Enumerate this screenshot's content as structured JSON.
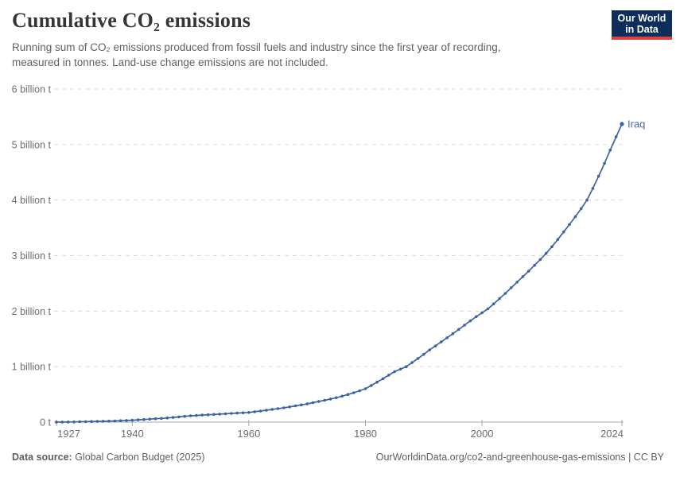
{
  "header": {
    "title": "Cumulative CO₂ emissions",
    "subtitle_line1": "Running sum of CO₂ emissions produced from fossil fuels and industry since the first year of recording,",
    "subtitle_line2": "measured in tonnes. Land-use change emissions are not included.",
    "logo": {
      "line1": "Our World",
      "line2": "in Data",
      "bg": "#0d2e5a",
      "accent": "#e0403d"
    }
  },
  "footer": {
    "source_label": "Data source:",
    "source_value": " Global Carbon Budget (2025)",
    "attribution": "OurWorldinData.org/co2-and-greenhouse-gas-emissions | CC BY"
  },
  "chart_data": {
    "type": "line",
    "title": "Cumulative CO₂ emissions",
    "entity": "Iraq",
    "unit": "tonnes",
    "xlim": [
      1927,
      2024
    ],
    "ylim_billion_t": [
      0,
      6
    ],
    "grid": "horizontal-dashed",
    "legend_position": "end-of-line-label",
    "x_label_ticks": [
      1927,
      1940,
      1960,
      1980,
      2000,
      2024
    ],
    "y_ticks": [
      {
        "value": 0,
        "label": "0 t"
      },
      {
        "value": 1,
        "label": "1 billion t"
      },
      {
        "value": 2,
        "label": "2 billion t"
      },
      {
        "value": 3,
        "label": "3 billion t"
      },
      {
        "value": 4,
        "label": "4 billion t"
      },
      {
        "value": 5,
        "label": "5 billion t"
      },
      {
        "value": 6,
        "label": "6 billion t"
      }
    ],
    "colors": {
      "line": "#3e63a2",
      "end_label": "#4a6ba8",
      "gridline": "#dadada",
      "axis": "#a8a8a8",
      "tick_label": "#6e6e6e"
    },
    "series": [
      {
        "name": "Iraq",
        "color": "#3e63a2",
        "years": [
          1927,
          1928,
          1929,
          1930,
          1931,
          1932,
          1933,
          1934,
          1935,
          1936,
          1937,
          1938,
          1939,
          1940,
          1941,
          1942,
          1943,
          1944,
          1945,
          1946,
          1947,
          1948,
          1949,
          1950,
          1951,
          1952,
          1953,
          1954,
          1955,
          1956,
          1957,
          1958,
          1959,
          1960,
          1961,
          1962,
          1963,
          1964,
          1965,
          1966,
          1967,
          1968,
          1969,
          1970,
          1971,
          1972,
          1973,
          1974,
          1975,
          1976,
          1977,
          1978,
          1979,
          1980,
          1981,
          1982,
          1983,
          1984,
          1985,
          1986,
          1987,
          1988,
          1989,
          1990,
          1991,
          1992,
          1993,
          1994,
          1995,
          1996,
          1997,
          1998,
          1999,
          2000,
          2001,
          2002,
          2003,
          2004,
          2005,
          2006,
          2007,
          2008,
          2009,
          2010,
          2011,
          2012,
          2013,
          2014,
          2015,
          2016,
          2017,
          2018,
          2019,
          2020,
          2021,
          2022,
          2023,
          2024
        ],
        "values_billion_t": [
          0.001,
          0.002,
          0.003,
          0.005,
          0.007,
          0.009,
          0.011,
          0.013,
          0.016,
          0.019,
          0.022,
          0.026,
          0.03,
          0.035,
          0.041,
          0.047,
          0.054,
          0.061,
          0.068,
          0.076,
          0.085,
          0.094,
          0.104,
          0.115,
          0.121,
          0.127,
          0.133,
          0.139,
          0.145,
          0.151,
          0.157,
          0.163,
          0.169,
          0.175,
          0.188,
          0.201,
          0.215,
          0.229,
          0.243,
          0.258,
          0.275,
          0.293,
          0.311,
          0.33,
          0.351,
          0.372,
          0.394,
          0.417,
          0.44,
          0.468,
          0.498,
          0.53,
          0.565,
          0.602,
          0.66,
          0.72,
          0.782,
          0.846,
          0.91,
          0.955,
          1.0,
          1.072,
          1.146,
          1.222,
          1.3,
          1.372,
          1.445,
          1.519,
          1.594,
          1.67,
          1.747,
          1.825,
          1.9,
          1.97,
          2.04,
          2.13,
          2.225,
          2.32,
          2.42,
          2.52,
          2.62,
          2.72,
          2.825,
          2.93,
          3.04,
          3.16,
          3.29,
          3.425,
          3.56,
          3.7,
          3.845,
          4.0,
          4.21,
          4.43,
          4.66,
          4.9,
          5.14,
          5.37
        ]
      }
    ]
  }
}
